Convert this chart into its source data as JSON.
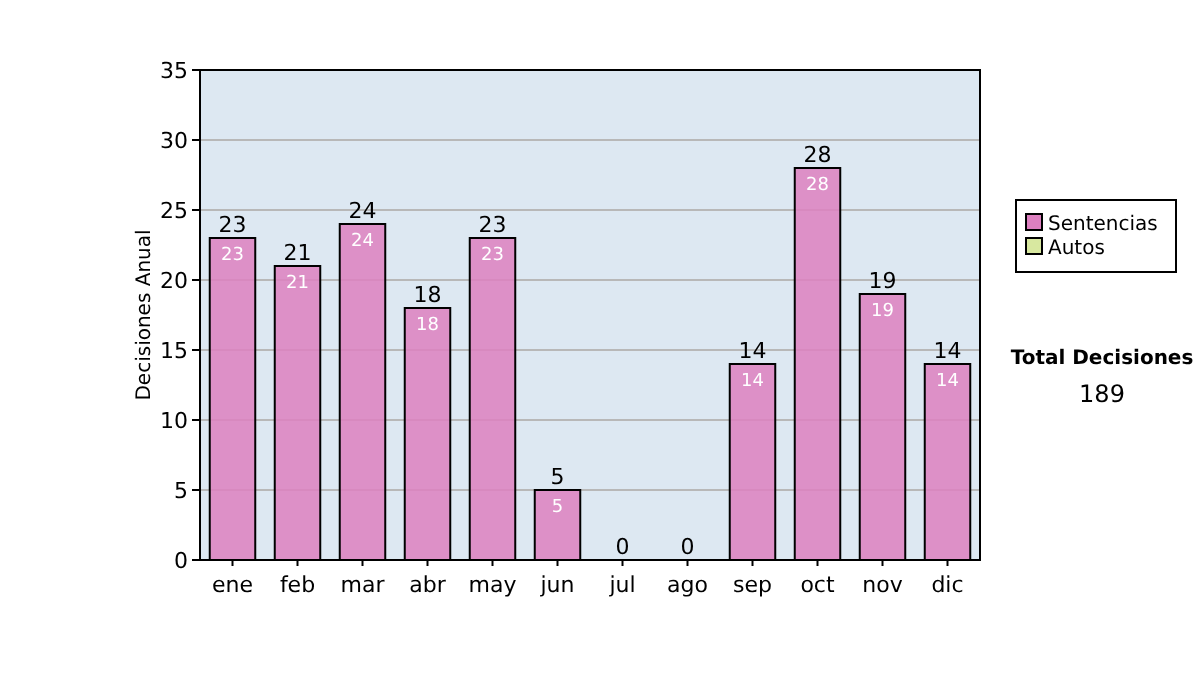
{
  "chart_data": {
    "type": "bar",
    "stacked": true,
    "ylabel": "Decisiones Anual",
    "categories": [
      "ene",
      "feb",
      "mar",
      "abr",
      "may",
      "jun",
      "jul",
      "ago",
      "sep",
      "oct",
      "nov",
      "dic"
    ],
    "series": [
      {
        "name": "Sentencias",
        "color": "#dd80c0",
        "values": [
          23,
          21,
          24,
          18,
          23,
          5,
          0,
          0,
          14,
          28,
          19,
          14
        ],
        "value_labels": [
          "23",
          "21",
          "24",
          "18",
          "23",
          "5",
          null,
          null,
          "14",
          "28",
          "19",
          "14"
        ]
      },
      {
        "name": "Autos",
        "color": "#d8e8a0",
        "values": [
          0,
          0,
          0,
          0,
          0,
          0,
          0,
          0,
          0,
          0,
          0,
          0
        ]
      }
    ],
    "totals": [
      "23",
      "21",
      "24",
      "18",
      "23",
      "5",
      "0",
      "0",
      "14",
      "28",
      "19",
      "14"
    ],
    "ylim": [
      0,
      35
    ],
    "yticks": [
      0,
      5,
      10,
      15,
      20,
      25,
      30,
      35
    ],
    "grid": "y",
    "legend": "right",
    "annotations": [
      "Total Decisiones",
      "189"
    ]
  }
}
